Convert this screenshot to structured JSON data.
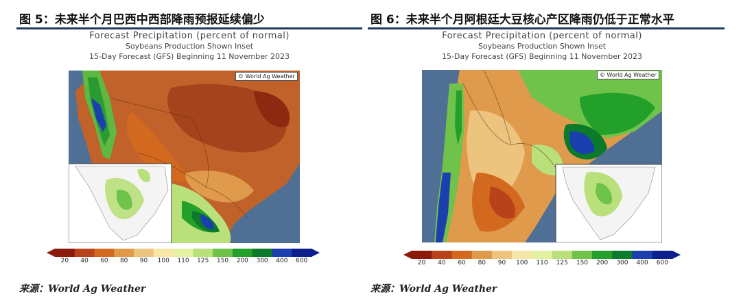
{
  "figures": [
    {
      "title": "图 5：未来半个月巴西中西部降雨预报延续偏少",
      "map_title": "Forecast Precipitation (percent of normal)",
      "map_subtitle": "Soybeans Production Shown Inset",
      "map_period": "15-Day Forecast (GFS) Beginning 11 November 2023",
      "credit": "© World Ag Weather",
      "colorbar_ticks": [
        "20",
        "40",
        "60",
        "80",
        "90",
        "100",
        "110",
        "125",
        "150",
        "200",
        "300",
        "400",
        "600"
      ],
      "source": "来源：World Ag Weather"
    },
    {
      "title": "图 6：未来半个月阿根廷大豆核心产区降雨仍低于正常水平",
      "map_title": "Forecast Precipitation (percent of normal)",
      "map_subtitle": "Soybeans Production Shown Inset",
      "map_period": "15-Day Forecast (GFS) Beginning 11 November 2023",
      "credit": "© World Ag Weather",
      "colorbar_ticks": [
        "20",
        "40",
        "60",
        "80",
        "90",
        "100",
        "110",
        "125",
        "150",
        "200",
        "300",
        "400",
        "600"
      ],
      "source": "来源：World Ag Weather"
    }
  ],
  "colors": {
    "ocean": "#4f6f95",
    "rule": "#1c3a5e",
    "scale": [
      "#8b1a0a",
      "#b8431a",
      "#d2691e",
      "#e09a4c",
      "#edc47e",
      "#f6e6a8",
      "#e3f2a0",
      "#b9e07a",
      "#6fc24a",
      "#23a02a",
      "#0b7a2a",
      "#1c3fb0",
      "#0c1f8c"
    ]
  }
}
